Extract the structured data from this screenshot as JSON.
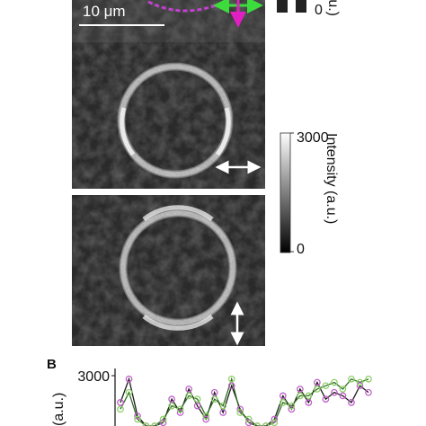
{
  "figure": {
    "panel_a": {
      "scale_bar": "10 μm",
      "top_colorbar_min": "0",
      "top_colorbar_label": "(a.u.)",
      "colorbar_max": "3000",
      "colorbar_min": "0",
      "colorbar_label": "Intensity (a.u.)"
    },
    "panel_b_label": "B"
  },
  "chart_data": {
    "type": "line",
    "ylabel": "(a.u.)",
    "categories": [
      null,
      null,
      null,
      null,
      null,
      null,
      null,
      null,
      null,
      null,
      null,
      null,
      null,
      null,
      null,
      null,
      null,
      null,
      null,
      null,
      null,
      null,
      null,
      null,
      null,
      null,
      null,
      null,
      null,
      null
    ],
    "series": [
      {
        "name": null,
        "color": "#1a1a1a",
        "marker_color": "#c060c8",
        "values": [
          2200,
          2900,
          1800,
          1500,
          1500,
          1600,
          2300,
          1900,
          2600,
          2100,
          1700,
          2500,
          1900,
          2700,
          2000,
          1600,
          1500,
          1500,
          1700,
          2400,
          2000,
          2600,
          2200,
          2800,
          2300,
          2500,
          2400,
          2200,
          2700,
          2500
        ]
      },
      {
        "name": null,
        "color": "#2f6e22",
        "marker_color": "#8fd06a",
        "values": [
          2000,
          2500,
          1700,
          1500,
          1500,
          1700,
          2100,
          2000,
          2400,
          2300,
          1800,
          2300,
          2100,
          2900,
          1900,
          1700,
          1500,
          1500,
          1600,
          2200,
          2100,
          2400,
          2400,
          2600,
          2700,
          2800,
          2600,
          2900,
          2800,
          2900
        ]
      }
    ],
    "ylim": [
      0,
      3000
    ],
    "yticks": [
      3000
    ]
  }
}
